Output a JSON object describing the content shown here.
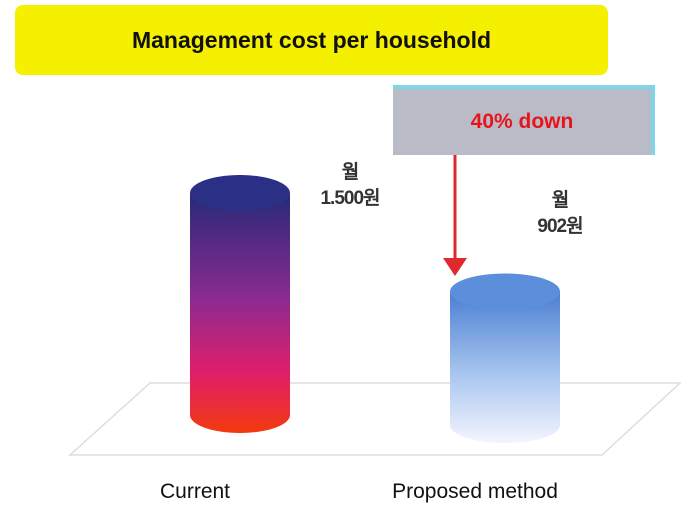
{
  "chart_data": {
    "type": "bar",
    "title": "Management cost per household",
    "categories": [
      "Current",
      "Proposed method"
    ],
    "values": [
      1500,
      902
    ],
    "value_labels": [
      "월\n1.500원",
      "월\n902원"
    ],
    "annotation": "40% down"
  }
}
